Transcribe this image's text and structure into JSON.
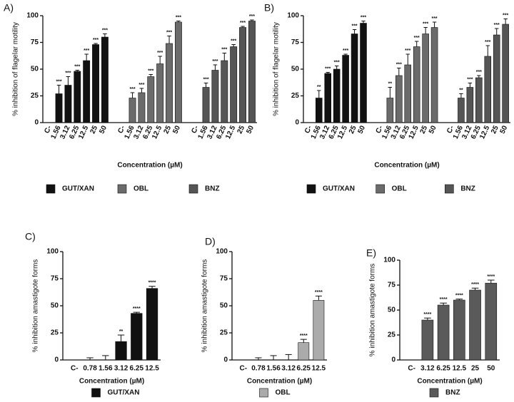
{
  "chart_data": [
    {
      "type": "bar",
      "panel_label": "A)",
      "y_label": "% inhibition of flagelar motility",
      "x_label": "Concentration (µM)",
      "ylim": [
        0,
        100
      ],
      "yticks": [
        0,
        25,
        50,
        75,
        100
      ],
      "series": [
        {
          "name": "GUT/XAN",
          "color": "#111111",
          "categories": [
            "C-",
            "1.56",
            "3.12",
            "6.25",
            "12.5",
            "25",
            "50"
          ],
          "values": [
            0,
            27,
            35,
            48,
            58,
            73,
            80
          ],
          "errors": [
            0,
            8,
            8,
            1,
            6,
            1,
            3
          ],
          "annotations": [
            null,
            "***",
            "***",
            "***",
            "***",
            "***",
            "***"
          ]
        },
        {
          "name": "OBL",
          "color": "#6b6b6b",
          "categories": [
            "C-",
            "1.56",
            "3.12",
            "6.25",
            "12.5",
            "25",
            "50"
          ],
          "values": [
            0,
            23,
            28,
            43,
            55,
            74,
            94
          ],
          "errors": [
            0,
            5,
            4,
            2,
            7,
            7,
            1
          ],
          "annotations": [
            null,
            "***",
            "***",
            "***",
            "***",
            "***",
            "***"
          ]
        },
        {
          "name": "BNZ",
          "color": "#555555",
          "categories": [
            "C-",
            "1.56",
            "3.12",
            "6.25",
            "12.5",
            "25",
            "50"
          ],
          "values": [
            0,
            33,
            49,
            58,
            71,
            89,
            95
          ],
          "errors": [
            0,
            4,
            5,
            7,
            2,
            1,
            1
          ],
          "annotations": [
            null,
            "***",
            "***",
            "***",
            "***",
            "***",
            "***"
          ]
        }
      ]
    },
    {
      "type": "bar",
      "panel_label": "B)",
      "y_label": "% inhibition of flagelar motility",
      "x_label": "Concentration (µM)",
      "ylim": [
        0,
        100
      ],
      "yticks": [
        0,
        25,
        50,
        75,
        100
      ],
      "series": [
        {
          "name": "GUT/XAN",
          "color": "#111111",
          "categories": [
            "C-",
            "1.56",
            "3.12",
            "6.25",
            "12.5",
            "25",
            "50"
          ],
          "values": [
            0,
            23,
            46,
            50,
            63,
            83,
            93
          ],
          "errors": [
            0,
            7,
            1,
            3,
            1,
            4,
            2
          ],
          "annotations": [
            null,
            "**",
            "***",
            "***",
            "***",
            "***",
            "***"
          ]
        },
        {
          "name": "OBL",
          "color": "#6b6b6b",
          "categories": [
            "C-",
            "1.56",
            "3.12",
            "6.25",
            "12.5",
            "25",
            "50"
          ],
          "values": [
            0,
            23,
            44,
            54,
            71,
            83,
            89
          ],
          "errors": [
            0,
            10,
            7,
            10,
            5,
            6,
            5
          ],
          "annotations": [
            null,
            "**",
            "***",
            "***",
            "***",
            "***",
            "***"
          ]
        },
        {
          "name": "BNZ",
          "color": "#555555",
          "categories": [
            "C-",
            "1.56",
            "3.12",
            "6.25",
            "12.5",
            "25",
            "50"
          ],
          "values": [
            0,
            23,
            33,
            42,
            62,
            82,
            92
          ],
          "errors": [
            0,
            4,
            4,
            2,
            10,
            6,
            5
          ],
          "annotations": [
            null,
            "**",
            "***",
            "***",
            "***",
            "***",
            "***"
          ]
        }
      ]
    },
    {
      "type": "bar",
      "panel_label": "C)",
      "y_label": "% inhibition amastigote forms",
      "x_label": "Concentration (µM)",
      "ylim": [
        0,
        100
      ],
      "yticks": [
        0,
        25,
        50,
        75,
        100
      ],
      "series": [
        {
          "name": "GUT/XAN",
          "color": "#111111",
          "categories": [
            "C-",
            "0.78",
            "1.56",
            "3.12",
            "6.25",
            "12.5"
          ],
          "values": [
            0,
            0,
            0,
            17,
            43,
            66
          ],
          "errors": [
            0,
            2,
            4,
            6,
            1,
            2
          ],
          "annotations": [
            null,
            null,
            null,
            "**",
            "****",
            "****"
          ]
        }
      ]
    },
    {
      "type": "bar",
      "panel_label": "D)",
      "y_label": "% inhibition amastigote forms",
      "x_label": "Concentration (µM)",
      "ylim": [
        0,
        100
      ],
      "yticks": [
        0,
        25,
        50,
        75,
        100
      ],
      "series": [
        {
          "name": "OBL",
          "color": "#ababab",
          "categories": [
            "C-",
            "0.78",
            "1.56",
            "3.12",
            "6.25",
            "12.5"
          ],
          "values": [
            0,
            0,
            0,
            0,
            16,
            55
          ],
          "errors": [
            0,
            2,
            4,
            5,
            3,
            4
          ],
          "annotations": [
            null,
            null,
            null,
            null,
            "****",
            "****"
          ]
        }
      ]
    },
    {
      "type": "bar",
      "panel_label": "E)",
      "y_label": "% inhibition amastigote forms",
      "x_label": "Concentration (µM)",
      "ylim": [
        0,
        100
      ],
      "yticks": [
        0,
        25,
        50,
        75,
        100
      ],
      "series": [
        {
          "name": "BNZ",
          "color": "#5a5a5a",
          "categories": [
            "C-",
            "3.12",
            "6.25",
            "12.5",
            "25",
            "50"
          ],
          "values": [
            0,
            40,
            55,
            60,
            70,
            77
          ],
          "errors": [
            0,
            2,
            2,
            1,
            2,
            3
          ],
          "annotations": [
            null,
            "****",
            "****",
            "****",
            "****",
            "****"
          ]
        }
      ]
    }
  ]
}
